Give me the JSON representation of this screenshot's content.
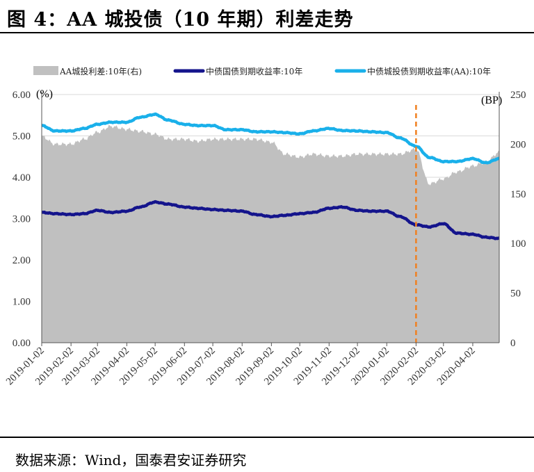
{
  "title": "图 4：AA 城投债（10 年期）利差走势",
  "source": "数据来源：Wind，国泰君安证券研究",
  "chart_data": {
    "type": "line",
    "title": "图 4：AA 城投债（10 年期）利差走势",
    "left_axis": {
      "unit": "(%)",
      "range": [
        0,
        6
      ],
      "ticks": [
        "0.00",
        "1.00",
        "2.00",
        "3.00",
        "4.00",
        "5.00",
        "6.00"
      ]
    },
    "right_axis": {
      "unit": "(BP)",
      "range": [
        0,
        250
      ],
      "ticks": [
        "0",
        "50",
        "100",
        "150",
        "200",
        "250"
      ]
    },
    "x_tick_labels": [
      "2019-01-02",
      "2019-02-02",
      "2019-03-02",
      "2019-04-02",
      "2019-05-02",
      "2019-06-02",
      "2019-07-02",
      "2019-08-02",
      "2019-09-02",
      "2019-10-02",
      "2019-11-02",
      "2019-12-02",
      "2020-01-02",
      "2020-02-02",
      "2020-03-02",
      "2020-04-02"
    ],
    "x": [
      "2019-01-02",
      "2019-01-16",
      "2019-02-02",
      "2019-02-16",
      "2019-03-02",
      "2019-03-16",
      "2019-04-02",
      "2019-04-16",
      "2019-05-02",
      "2019-05-16",
      "2019-06-02",
      "2019-06-16",
      "2019-07-02",
      "2019-07-16",
      "2019-08-02",
      "2019-08-16",
      "2019-09-02",
      "2019-09-16",
      "2019-10-02",
      "2019-10-16",
      "2019-11-02",
      "2019-11-16",
      "2019-12-02",
      "2019-12-16",
      "2020-01-02",
      "2020-01-16",
      "2020-02-02",
      "2020-02-16",
      "2020-03-02",
      "2020-03-16",
      "2020-04-02",
      "2020-04-16",
      "2020-04-30"
    ],
    "series": [
      {
        "name": "AA城投利差:10年(右)",
        "axis": "right",
        "style": "area",
        "color": "#c0c0c0",
        "values": [
          208,
          200,
          200,
          205,
          212,
          218,
          215,
          213,
          210,
          205,
          205,
          203,
          205,
          205,
          205,
          205,
          202,
          190,
          187,
          190,
          188,
          188,
          190,
          190,
          190,
          190,
          195,
          160,
          165,
          172,
          178,
          182,
          192
        ]
      },
      {
        "name": "中债国债到期收益率:10年",
        "axis": "left",
        "style": "line",
        "color": "#14148c",
        "values": [
          3.15,
          3.12,
          3.1,
          3.12,
          3.2,
          3.15,
          3.18,
          3.28,
          3.4,
          3.35,
          3.28,
          3.25,
          3.22,
          3.2,
          3.18,
          3.1,
          3.05,
          3.08,
          3.12,
          3.15,
          3.25,
          3.28,
          3.2,
          3.18,
          3.18,
          3.05,
          2.85,
          2.8,
          2.88,
          2.65,
          2.62,
          2.55,
          2.52
        ]
      },
      {
        "name": "中债城投债到期收益率(AA):10年",
        "axis": "left",
        "style": "line",
        "color": "#1ab0ea",
        "values": [
          5.25,
          5.12,
          5.12,
          5.18,
          5.28,
          5.33,
          5.33,
          5.45,
          5.52,
          5.38,
          5.28,
          5.25,
          5.25,
          5.15,
          5.15,
          5.1,
          5.1,
          5.08,
          5.05,
          5.12,
          5.18,
          5.13,
          5.12,
          5.1,
          5.08,
          4.95,
          4.75,
          4.48,
          4.38,
          4.38,
          4.45,
          4.35,
          4.45
        ]
      }
    ],
    "marker": {
      "x": "2020-02-02",
      "style": "dashed",
      "color": "#f08020"
    },
    "legend": "top",
    "grid": "horizontal"
  }
}
